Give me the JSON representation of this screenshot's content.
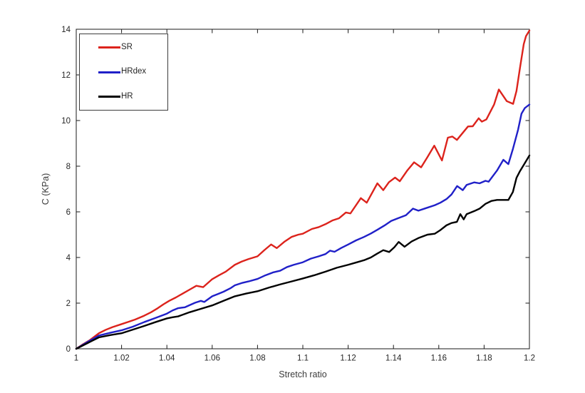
{
  "figure": {
    "background": "#ffffff",
    "axis_color": "#1a1a1a",
    "tick_label_color": "#262626"
  },
  "chart_data": {
    "type": "line",
    "title": "",
    "xlabel": "Stretch ratio",
    "ylabel": "C (KPa)",
    "xlim": [
      1,
      1.2
    ],
    "ylim": [
      0,
      14
    ],
    "grid": false,
    "legend_position": "top-left",
    "x_ticks": [
      1,
      1.02,
      1.04,
      1.06,
      1.08,
      1.1,
      1.12,
      1.14,
      1.16,
      1.18,
      1.2
    ],
    "x_tick_labels": [
      "1",
      "1.02",
      "1.04",
      "1.06",
      "1.08",
      "1.1",
      "1.12",
      "1.14",
      "1.16",
      "1.18",
      "1.2"
    ],
    "y_ticks": [
      0,
      2,
      4,
      6,
      8,
      10,
      12,
      14
    ],
    "y_tick_labels": [
      "0",
      "2",
      "4",
      "6",
      "8",
      "10",
      "12",
      "14"
    ],
    "series": [
      {
        "name": "SR",
        "color": "#dc231c",
        "line_width": 2.4,
        "points": [
          [
            1.0,
            0
          ],
          [
            1.003,
            0.2
          ],
          [
            1.006,
            0.38
          ],
          [
            1.01,
            0.68
          ],
          [
            1.013,
            0.83
          ],
          [
            1.016,
            0.95
          ],
          [
            1.02,
            1.08
          ],
          [
            1.023,
            1.18
          ],
          [
            1.026,
            1.28
          ],
          [
            1.03,
            1.45
          ],
          [
            1.033,
            1.6
          ],
          [
            1.036,
            1.78
          ],
          [
            1.0385,
            1.95
          ],
          [
            1.041,
            2.1
          ],
          [
            1.044,
            2.25
          ],
          [
            1.047,
            2.42
          ],
          [
            1.05,
            2.59
          ],
          [
            1.053,
            2.76
          ],
          [
            1.056,
            2.7
          ],
          [
            1.06,
            3.05
          ],
          [
            1.063,
            3.22
          ],
          [
            1.066,
            3.38
          ],
          [
            1.07,
            3.68
          ],
          [
            1.073,
            3.82
          ],
          [
            1.076,
            3.93
          ],
          [
            1.08,
            4.05
          ],
          [
            1.083,
            4.32
          ],
          [
            1.086,
            4.57
          ],
          [
            1.0885,
            4.41
          ],
          [
            1.092,
            4.7
          ],
          [
            1.095,
            4.9
          ],
          [
            1.098,
            5.0
          ],
          [
            1.1,
            5.04
          ],
          [
            1.104,
            5.25
          ],
          [
            1.107,
            5.33
          ],
          [
            1.11,
            5.46
          ],
          [
            1.113,
            5.62
          ],
          [
            1.116,
            5.72
          ],
          [
            1.119,
            5.97
          ],
          [
            1.121,
            5.93
          ],
          [
            1.1256,
            6.6
          ],
          [
            1.1282,
            6.4
          ],
          [
            1.1329,
            7.25
          ],
          [
            1.1355,
            6.95
          ],
          [
            1.138,
            7.3
          ],
          [
            1.1407,
            7.5
          ],
          [
            1.1428,
            7.34
          ],
          [
            1.146,
            7.8
          ],
          [
            1.1491,
            8.17
          ],
          [
            1.1522,
            7.95
          ],
          [
            1.155,
            8.4
          ],
          [
            1.158,
            8.9
          ],
          [
            1.1614,
            8.25
          ],
          [
            1.164,
            9.25
          ],
          [
            1.166,
            9.3
          ],
          [
            1.168,
            9.15
          ],
          [
            1.1729,
            9.74
          ],
          [
            1.175,
            9.75
          ],
          [
            1.1776,
            10.1
          ],
          [
            1.179,
            9.95
          ],
          [
            1.181,
            10.05
          ],
          [
            1.1844,
            10.7
          ],
          [
            1.1865,
            11.36
          ],
          [
            1.19,
            10.85
          ],
          [
            1.1928,
            10.73
          ],
          [
            1.1943,
            11.3
          ],
          [
            1.1959,
            12.35
          ],
          [
            1.1975,
            13.35
          ],
          [
            1.1985,
            13.7
          ],
          [
            1.2,
            13.94
          ]
        ]
      },
      {
        "name": "HRdex",
        "color": "#2020c8",
        "line_width": 2.4,
        "points": [
          [
            1.0,
            0
          ],
          [
            1.005,
            0.3
          ],
          [
            1.01,
            0.58
          ],
          [
            1.015,
            0.7
          ],
          [
            1.02,
            0.81
          ],
          [
            1.025,
            0.97
          ],
          [
            1.03,
            1.17
          ],
          [
            1.035,
            1.35
          ],
          [
            1.04,
            1.54
          ],
          [
            1.0425,
            1.68
          ],
          [
            1.045,
            1.78
          ],
          [
            1.048,
            1.82
          ],
          [
            1.05,
            1.91
          ],
          [
            1.0525,
            2.02
          ],
          [
            1.055,
            2.1
          ],
          [
            1.0565,
            2.05
          ],
          [
            1.06,
            2.3
          ],
          [
            1.0625,
            2.4
          ],
          [
            1.065,
            2.5
          ],
          [
            1.068,
            2.65
          ],
          [
            1.07,
            2.78
          ],
          [
            1.073,
            2.88
          ],
          [
            1.076,
            2.95
          ],
          [
            1.08,
            3.06
          ],
          [
            1.0835,
            3.22
          ],
          [
            1.087,
            3.35
          ],
          [
            1.09,
            3.42
          ],
          [
            1.093,
            3.58
          ],
          [
            1.096,
            3.68
          ],
          [
            1.1,
            3.79
          ],
          [
            1.1035,
            3.95
          ],
          [
            1.107,
            4.05
          ],
          [
            1.11,
            4.15
          ],
          [
            1.112,
            4.3
          ],
          [
            1.114,
            4.25
          ],
          [
            1.117,
            4.42
          ],
          [
            1.12,
            4.57
          ],
          [
            1.1235,
            4.75
          ],
          [
            1.127,
            4.9
          ],
          [
            1.13,
            5.05
          ],
          [
            1.133,
            5.22
          ],
          [
            1.136,
            5.4
          ],
          [
            1.139,
            5.6
          ],
          [
            1.142,
            5.72
          ],
          [
            1.1455,
            5.85
          ],
          [
            1.1486,
            6.14
          ],
          [
            1.151,
            6.05
          ],
          [
            1.154,
            6.15
          ],
          [
            1.1582,
            6.29
          ],
          [
            1.1607,
            6.4
          ],
          [
            1.1634,
            6.56
          ],
          [
            1.1656,
            6.76
          ],
          [
            1.1681,
            7.13
          ],
          [
            1.1706,
            6.95
          ],
          [
            1.1723,
            7.18
          ],
          [
            1.1756,
            7.29
          ],
          [
            1.178,
            7.25
          ],
          [
            1.1806,
            7.36
          ],
          [
            1.182,
            7.32
          ],
          [
            1.1857,
            7.81
          ],
          [
            1.1885,
            8.28
          ],
          [
            1.1907,
            8.09
          ],
          [
            1.1927,
            8.75
          ],
          [
            1.195,
            9.6
          ],
          [
            1.1965,
            10.3
          ],
          [
            1.198,
            10.55
          ],
          [
            1.2,
            10.7
          ]
        ]
      },
      {
        "name": "HR",
        "color": "#000000",
        "line_width": 2.4,
        "points": [
          [
            1.0,
            0
          ],
          [
            1.005,
            0.25
          ],
          [
            1.01,
            0.5
          ],
          [
            1.015,
            0.6
          ],
          [
            1.02,
            0.68
          ],
          [
            1.025,
            0.84
          ],
          [
            1.03,
            1.0
          ],
          [
            1.035,
            1.17
          ],
          [
            1.04,
            1.33
          ],
          [
            1.0425,
            1.38
          ],
          [
            1.045,
            1.42
          ],
          [
            1.05,
            1.6
          ],
          [
            1.055,
            1.75
          ],
          [
            1.06,
            1.9
          ],
          [
            1.065,
            2.1
          ],
          [
            1.07,
            2.3
          ],
          [
            1.075,
            2.42
          ],
          [
            1.08,
            2.52
          ],
          [
            1.085,
            2.68
          ],
          [
            1.09,
            2.82
          ],
          [
            1.095,
            2.95
          ],
          [
            1.1,
            3.08
          ],
          [
            1.105,
            3.22
          ],
          [
            1.11,
            3.38
          ],
          [
            1.115,
            3.55
          ],
          [
            1.12,
            3.68
          ],
          [
            1.1235,
            3.78
          ],
          [
            1.127,
            3.88
          ],
          [
            1.13,
            4.0
          ],
          [
            1.1325,
            4.15
          ],
          [
            1.1355,
            4.32
          ],
          [
            1.1381,
            4.24
          ],
          [
            1.1404,
            4.45
          ],
          [
            1.1423,
            4.68
          ],
          [
            1.1449,
            4.47
          ],
          [
            1.148,
            4.7
          ],
          [
            1.151,
            4.85
          ],
          [
            1.155,
            5.0
          ],
          [
            1.1582,
            5.04
          ],
          [
            1.1607,
            5.2
          ],
          [
            1.1634,
            5.41
          ],
          [
            1.1656,
            5.51
          ],
          [
            1.168,
            5.56
          ],
          [
            1.1695,
            5.9
          ],
          [
            1.171,
            5.67
          ],
          [
            1.1723,
            5.9
          ],
          [
            1.1756,
            6.03
          ],
          [
            1.178,
            6.14
          ],
          [
            1.1806,
            6.35
          ],
          [
            1.1833,
            6.48
          ],
          [
            1.1857,
            6.52
          ],
          [
            1.1907,
            6.52
          ],
          [
            1.1927,
            6.87
          ],
          [
            1.1943,
            7.49
          ],
          [
            1.1957,
            7.76
          ],
          [
            1.1979,
            8.12
          ],
          [
            1.2,
            8.47
          ]
        ]
      }
    ]
  },
  "legend": {
    "items": [
      {
        "label": "SR"
      },
      {
        "label": "HRdex"
      },
      {
        "label": "HR"
      }
    ]
  }
}
